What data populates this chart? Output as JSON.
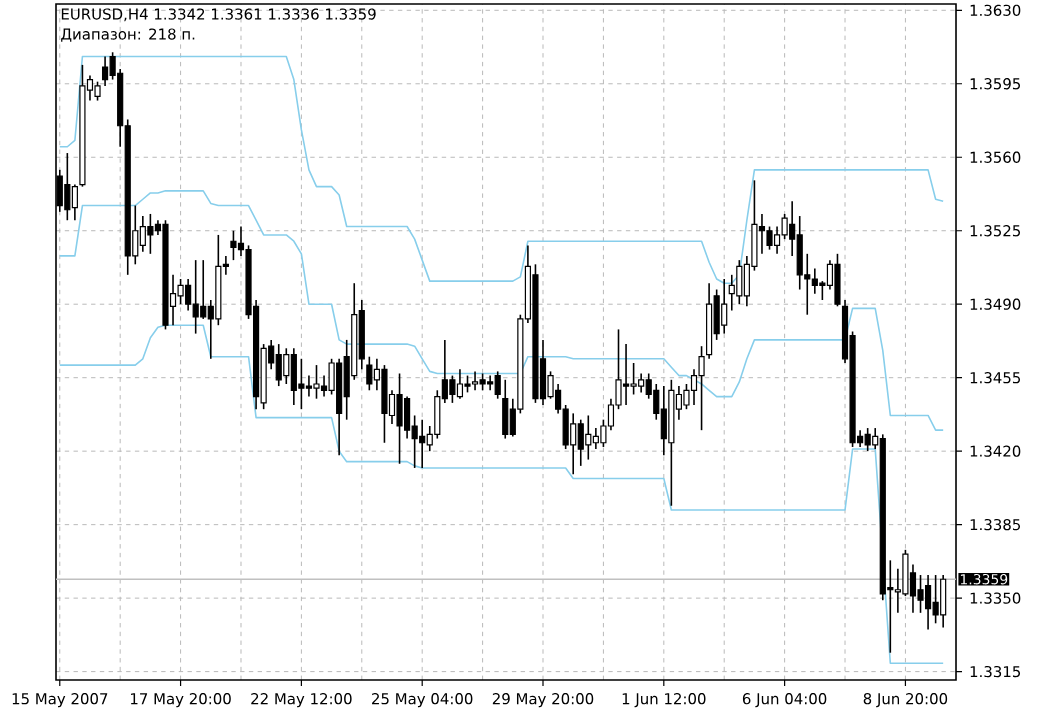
{
  "chart_data": {
    "type": "candlestick",
    "title": "EURUSD,H4 1.3342 1.3361 1.3336 1.3359",
    "subtitle": "Диапазон: 218 п.",
    "categories": [
      "15 May 2007",
      null,
      null,
      null,
      null,
      null,
      null,
      null,
      null,
      null,
      null,
      null,
      null,
      null,
      null,
      null,
      "17 May 20:00",
      null,
      null,
      null,
      null,
      null,
      null,
      null,
      null,
      null,
      null,
      null,
      null,
      null,
      null,
      null,
      "22 May 12:00",
      null,
      null,
      null,
      null,
      null,
      null,
      null,
      null,
      null,
      null,
      null,
      null,
      null,
      null,
      null,
      "25 May 04:00",
      null,
      null,
      null,
      null,
      null,
      null,
      null,
      null,
      null,
      null,
      null,
      null,
      null,
      null,
      null,
      "29 May 20:00",
      null,
      null,
      null,
      null,
      null,
      null,
      null,
      null,
      null,
      null,
      null,
      null,
      null,
      null,
      null,
      "1 Jun 12:00",
      null,
      null,
      null,
      null,
      null,
      null,
      null,
      null,
      null,
      null,
      null,
      null,
      null,
      null,
      null,
      "6 Jun 04:00",
      null,
      null,
      null,
      null,
      null,
      null,
      null,
      null,
      null,
      null,
      null,
      null,
      null,
      null,
      null,
      "8 Jun 20:00",
      null,
      null,
      null,
      null,
      null
    ],
    "ohlc": [
      [
        1.3551,
        1.3554,
        1.3534,
        1.3537
      ],
      [
        1.3547,
        1.3562,
        1.353,
        1.3535
      ],
      [
        1.3536,
        1.3547,
        1.353,
        1.3546
      ],
      [
        1.3547,
        1.3604,
        1.3546,
        1.3594
      ],
      [
        1.3592,
        1.3599,
        1.3587,
        1.3597
      ],
      [
        1.3589,
        1.3596,
        1.3587,
        1.3594
      ],
      [
        1.3603,
        1.3608,
        1.3594,
        1.3597
      ],
      [
        1.3608,
        1.361,
        1.3597,
        1.3599
      ],
      [
        1.36,
        1.3602,
        1.3565,
        1.3575
      ],
      [
        1.3575,
        1.3578,
        1.3504,
        1.3513
      ],
      [
        1.3513,
        1.3537,
        1.3509,
        1.3525
      ],
      [
        1.3518,
        1.3532,
        1.3515,
        1.3527
      ],
      [
        1.3527,
        1.3533,
        1.3514,
        1.3523
      ],
      [
        1.3528,
        1.353,
        1.3523,
        1.3525
      ],
      [
        1.3528,
        1.353,
        1.3478,
        1.348
      ],
      [
        1.3489,
        1.3504,
        1.348,
        1.3495
      ],
      [
        1.3494,
        1.3502,
        1.349,
        1.3499
      ],
      [
        1.3499,
        1.3502,
        1.3487,
        1.349
      ],
      [
        1.349,
        1.3511,
        1.3476,
        1.3484
      ],
      [
        1.3489,
        1.3511,
        1.3483,
        1.3484
      ],
      [
        1.3489,
        1.3492,
        1.3464,
        1.3483
      ],
      [
        1.3483,
        1.3523,
        1.348,
        1.3508
      ],
      [
        1.3509,
        1.3513,
        1.3504,
        1.3508
      ],
      [
        1.352,
        1.3525,
        1.3511,
        1.3517
      ],
      [
        1.3519,
        1.3527,
        1.3513,
        1.3516
      ],
      [
        1.3516,
        1.3518,
        1.3483,
        1.3485
      ],
      [
        1.3489,
        1.3492,
        1.344,
        1.3446
      ],
      [
        1.3443,
        1.3471,
        1.344,
        1.3469
      ],
      [
        1.347,
        1.3473,
        1.3459,
        1.3462
      ],
      [
        1.3466,
        1.3471,
        1.3451,
        1.3454
      ],
      [
        1.3456,
        1.3469,
        1.3452,
        1.3466
      ],
      [
        1.3466,
        1.3469,
        1.3442,
        1.3449
      ],
      [
        1.3452,
        1.3464,
        1.344,
        1.345
      ],
      [
        1.3451,
        1.3456,
        1.3446,
        1.345
      ],
      [
        1.345,
        1.3461,
        1.3445,
        1.3452
      ],
      [
        1.3451,
        1.3456,
        1.3446,
        1.3449
      ],
      [
        1.3449,
        1.3464,
        1.3447,
        1.3462
      ],
      [
        1.3462,
        1.3464,
        1.3418,
        1.3438
      ],
      [
        1.3465,
        1.3473,
        1.3435,
        1.3446
      ],
      [
        1.3456,
        1.35,
        1.3454,
        1.3485
      ],
      [
        1.3487,
        1.3492,
        1.3459,
        1.3464
      ],
      [
        1.3461,
        1.3465,
        1.3449,
        1.3452
      ],
      [
        1.3454,
        1.3464,
        1.3449,
        1.3459
      ],
      [
        1.3459,
        1.3461,
        1.3424,
        1.3438
      ],
      [
        1.3437,
        1.3449,
        1.3433,
        1.3447
      ],
      [
        1.3447,
        1.3457,
        1.3414,
        1.3432
      ],
      [
        1.3445,
        1.3446,
        1.3426,
        1.343
      ],
      [
        1.3432,
        1.3437,
        1.3412,
        1.3426
      ],
      [
        1.3427,
        1.3435,
        1.3412,
        1.3424
      ],
      [
        1.3423,
        1.3432,
        1.342,
        1.3428
      ],
      [
        1.3428,
        1.3449,
        1.3426,
        1.3446
      ],
      [
        1.3454,
        1.3473,
        1.3443,
        1.3445
      ],
      [
        1.3454,
        1.3456,
        1.3443,
        1.3447
      ],
      [
        1.3446,
        1.3459,
        1.3445,
        1.3452
      ],
      [
        1.3452,
        1.3456,
        1.3448,
        1.3451
      ],
      [
        1.3452,
        1.3458,
        1.3449,
        1.3453
      ],
      [
        1.3454,
        1.3457,
        1.3449,
        1.3452
      ],
      [
        1.3453,
        1.3456,
        1.3449,
        1.3452
      ],
      [
        1.3456,
        1.3458,
        1.3445,
        1.3447
      ],
      [
        1.3445,
        1.3454,
        1.3426,
        1.3428
      ],
      [
        1.344,
        1.3445,
        1.3427,
        1.3428
      ],
      [
        1.344,
        1.3485,
        1.3438,
        1.3483
      ],
      [
        1.3483,
        1.3518,
        1.3481,
        1.3508
      ],
      [
        1.3504,
        1.3509,
        1.3443,
        1.3445
      ],
      [
        1.3464,
        1.3473,
        1.3442,
        1.3445
      ],
      [
        1.3446,
        1.3458,
        1.3445,
        1.3456
      ],
      [
        1.3449,
        1.3452,
        1.3438,
        1.344
      ],
      [
        1.344,
        1.3442,
        1.3421,
        1.3423
      ],
      [
        1.3423,
        1.3438,
        1.3409,
        1.3433
      ],
      [
        1.3433,
        1.3435,
        1.3413,
        1.3421
      ],
      [
        1.3423,
        1.3437,
        1.3416,
        1.3428
      ],
      [
        1.3424,
        1.3431,
        1.3421,
        1.3427
      ],
      [
        1.3424,
        1.3435,
        1.3422,
        1.3432
      ],
      [
        1.3432,
        1.3445,
        1.343,
        1.3442
      ],
      [
        1.3442,
        1.3478,
        1.344,
        1.3454
      ],
      [
        1.3452,
        1.3471,
        1.3442,
        1.3451
      ],
      [
        1.3451,
        1.3462,
        1.3447,
        1.3452
      ],
      [
        1.3451,
        1.3457,
        1.3448,
        1.3454
      ],
      [
        1.3454,
        1.3457,
        1.3445,
        1.3447
      ],
      [
        1.3449,
        1.3452,
        1.3435,
        1.3438
      ],
      [
        1.344,
        1.3451,
        1.3418,
        1.3426
      ],
      [
        1.3424,
        1.3454,
        1.3394,
        1.3449
      ],
      [
        1.344,
        1.3451,
        1.3435,
        1.3447
      ],
      [
        1.3442,
        1.3452,
        1.344,
        1.3449
      ],
      [
        1.3449,
        1.3459,
        1.3442,
        1.3456
      ],
      [
        1.3456,
        1.347,
        1.343,
        1.3465
      ],
      [
        1.3466,
        1.35,
        1.3464,
        1.349
      ],
      [
        1.3494,
        1.3497,
        1.3473,
        1.3476
      ],
      [
        1.348,
        1.3502,
        1.3476,
        1.349
      ],
      [
        1.3495,
        1.3504,
        1.3487,
        1.3499
      ],
      [
        1.3494,
        1.3511,
        1.349,
        1.3508
      ],
      [
        1.3494,
        1.3513,
        1.3489,
        1.3509
      ],
      [
        1.3508,
        1.3549,
        1.3506,
        1.3528
      ],
      [
        1.3527,
        1.3533,
        1.3514,
        1.3525
      ],
      [
        1.3525,
        1.3527,
        1.3516,
        1.3518
      ],
      [
        1.3518,
        1.3527,
        1.3514,
        1.3523
      ],
      [
        1.3523,
        1.3533,
        1.3521,
        1.3531
      ],
      [
        1.3528,
        1.3539,
        1.3513,
        1.3521
      ],
      [
        1.3523,
        1.3532,
        1.3497,
        1.3504
      ],
      [
        1.3504,
        1.3514,
        1.3485,
        1.3502
      ],
      [
        1.3502,
        1.3507,
        1.3495,
        1.3499
      ],
      [
        1.35,
        1.3501,
        1.3492,
        1.3499
      ],
      [
        1.3499,
        1.3511,
        1.3497,
        1.3509
      ],
      [
        1.3509,
        1.3514,
        1.3489,
        1.349
      ],
      [
        1.3489,
        1.3492,
        1.3462,
        1.3464
      ],
      [
        1.3475,
        1.3477,
        1.3422,
        1.3424
      ],
      [
        1.3427,
        1.343,
        1.3422,
        1.3424
      ],
      [
        1.3428,
        1.3431,
        1.342,
        1.3423
      ],
      [
        1.3423,
        1.3431,
        1.3421,
        1.3427
      ],
      [
        1.3426,
        1.3428,
        1.3349,
        1.3352
      ],
      [
        1.3355,
        1.3368,
        1.3324,
        1.3354
      ],
      [
        1.3353,
        1.3364,
        1.3343,
        1.3354
      ],
      [
        1.3352,
        1.3373,
        1.3351,
        1.3371
      ],
      [
        1.3362,
        1.3366,
        1.3343,
        1.3351
      ],
      [
        1.3354,
        1.3361,
        1.3343,
        1.3349
      ],
      [
        1.3356,
        1.3361,
        1.3335,
        1.3345
      ],
      [
        1.3348,
        1.3361,
        1.3338,
        1.3342
      ],
      [
        1.3342,
        1.3361,
        1.3336,
        1.3359
      ]
    ],
    "series": [
      {
        "type": "line",
        "color": "#87ceeb",
        "values": [
          1.3565,
          1.3565,
          1.3568,
          1.3608,
          1.3608,
          1.3608,
          1.3608,
          1.3608,
          1.3608,
          1.3608,
          1.3608,
          1.3608,
          1.3608,
          1.3608,
          1.3608,
          1.3608,
          1.3608,
          1.3608,
          1.3608,
          1.3608,
          1.3608,
          1.3608,
          1.3608,
          1.3608,
          1.3608,
          1.3608,
          1.3608,
          1.3608,
          1.3608,
          1.3608,
          1.3608,
          1.3597,
          1.3573,
          1.3554,
          1.3546,
          1.3546,
          1.3546,
          1.3542,
          1.3527,
          1.3527,
          1.3527,
          1.3527,
          1.3527,
          1.3527,
          1.3527,
          1.3527,
          1.3527,
          1.3521,
          1.3511,
          1.3501,
          1.3501,
          1.3501,
          1.3501,
          1.3501,
          1.3501,
          1.3501,
          1.3501,
          1.3501,
          1.3501,
          1.3501,
          1.3501,
          1.3503,
          1.352,
          1.352,
          1.352,
          1.352,
          1.352,
          1.352,
          1.352,
          1.352,
          1.352,
          1.352,
          1.352,
          1.352,
          1.352,
          1.352,
          1.352,
          1.352,
          1.352,
          1.352,
          1.352,
          1.352,
          1.352,
          1.352,
          1.352,
          1.352,
          1.351,
          1.3502,
          1.35,
          1.35,
          1.3504,
          1.353,
          1.3554,
          1.3554,
          1.3554,
          1.3554,
          1.3554,
          1.3554,
          1.3554,
          1.3554,
          1.3554,
          1.3554,
          1.3554,
          1.3554,
          1.3554,
          1.3554,
          1.3554,
          1.3554,
          1.3554,
          1.3554,
          1.3554,
          1.3554,
          1.3554,
          1.3554,
          1.3554,
          1.3554,
          1.354,
          1.3539
        ]
      },
      {
        "type": "line",
        "color": "#87ceeb",
        "values": [
          1.3513,
          1.3513,
          1.3513,
          1.3537,
          1.3537,
          1.3537,
          1.3537,
          1.3537,
          1.3537,
          1.3537,
          1.3537,
          1.354,
          1.3543,
          1.3543,
          1.3544,
          1.3544,
          1.3544,
          1.3544,
          1.3544,
          1.3544,
          1.3538,
          1.3537,
          1.3537,
          1.3537,
          1.3537,
          1.3537,
          1.353,
          1.3523,
          1.3523,
          1.3523,
          1.3523,
          1.352,
          1.3514,
          1.349,
          1.349,
          1.349,
          1.349,
          1.3473,
          1.3471,
          1.3471,
          1.3471,
          1.3471,
          1.3471,
          1.3471,
          1.3471,
          1.3471,
          1.3471,
          1.347,
          1.3464,
          1.3458,
          1.3457,
          1.3457,
          1.3457,
          1.3457,
          1.3457,
          1.3457,
          1.3457,
          1.3457,
          1.3457,
          1.3457,
          1.3457,
          1.3457,
          1.3465,
          1.3465,
          1.3465,
          1.3465,
          1.3465,
          1.3465,
          1.3464,
          1.3464,
          1.3464,
          1.3464,
          1.3464,
          1.3464,
          1.3464,
          1.3464,
          1.3464,
          1.3464,
          1.3464,
          1.3464,
          1.3464,
          1.346,
          1.3456,
          1.3456,
          1.3454,
          1.3452,
          1.3449,
          1.3446,
          1.3446,
          1.3446,
          1.3453,
          1.3464,
          1.3473,
          1.3473,
          1.3473,
          1.3473,
          1.3473,
          1.3473,
          1.3473,
          1.3473,
          1.3473,
          1.3473,
          1.3473,
          1.3473,
          1.3473,
          1.3488,
          1.3488,
          1.3488,
          1.3488,
          1.3468,
          1.3437,
          1.3437,
          1.3437,
          1.3437,
          1.3437,
          1.3437,
          1.343,
          1.343
        ]
      },
      {
        "type": "line",
        "color": "#87ceeb",
        "values": [
          1.3461,
          1.3461,
          1.3461,
          1.3461,
          1.3461,
          1.3461,
          1.3461,
          1.3461,
          1.3461,
          1.3461,
          1.3461,
          1.3464,
          1.3474,
          1.3479,
          1.348,
          1.348,
          1.348,
          1.348,
          1.348,
          1.348,
          1.3465,
          1.3465,
          1.3465,
          1.3465,
          1.3465,
          1.3465,
          1.3436,
          1.3436,
          1.3436,
          1.3436,
          1.3436,
          1.3436,
          1.3436,
          1.3436,
          1.3436,
          1.3436,
          1.3436,
          1.342,
          1.3415,
          1.3415,
          1.3415,
          1.3415,
          1.3415,
          1.3415,
          1.3415,
          1.3415,
          1.3415,
          1.3413,
          1.3412,
          1.3412,
          1.3412,
          1.3412,
          1.3412,
          1.3412,
          1.3412,
          1.3412,
          1.3412,
          1.3412,
          1.3412,
          1.3412,
          1.3412,
          1.3412,
          1.3412,
          1.3412,
          1.3412,
          1.3412,
          1.3412,
          1.3412,
          1.3407,
          1.3407,
          1.3407,
          1.3407,
          1.3407,
          1.3407,
          1.3407,
          1.3407,
          1.3407,
          1.3407,
          1.3407,
          1.3407,
          1.3407,
          1.3392,
          1.3392,
          1.3392,
          1.3392,
          1.3392,
          1.3392,
          1.3392,
          1.3392,
          1.3392,
          1.3392,
          1.3392,
          1.3392,
          1.3392,
          1.3392,
          1.3392,
          1.3392,
          1.3392,
          1.3392,
          1.3392,
          1.3392,
          1.3392,
          1.3392,
          1.3392,
          1.3392,
          1.3421,
          1.3421,
          1.3421,
          1.3421,
          null,
          1.3319,
          1.3319,
          1.3319,
          1.3319,
          1.3319,
          1.3319,
          1.3319,
          1.3319
        ]
      }
    ],
    "ylim": [
      1.3311,
      1.3633
    ],
    "yticks": [
      {
        "value": 1.3315,
        "label": "1.3315"
      },
      {
        "value": 1.335,
        "label": "1.3350"
      },
      {
        "value": 1.3385,
        "label": "1.3385"
      },
      {
        "value": 1.342,
        "label": "1.3420"
      },
      {
        "value": 1.3455,
        "label": "1.3455"
      },
      {
        "value": 1.349,
        "label": "1.3490"
      },
      {
        "value": 1.3525,
        "label": "1.3525"
      },
      {
        "value": 1.356,
        "label": "1.3560"
      },
      {
        "value": 1.3595,
        "label": "1.3595"
      },
      {
        "value": 1.363,
        "label": "1.3630"
      }
    ],
    "grid": true,
    "ref_lines": [
      {
        "axis": "y",
        "value": 1.3359,
        "label": "1.3359",
        "color": "#c0c0c0"
      }
    ]
  }
}
